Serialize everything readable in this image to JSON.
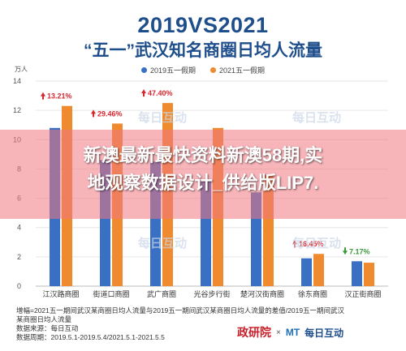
{
  "header": {
    "title": "2019VS2021",
    "subtitle": "“五一”武汉知名商圈日均人流量"
  },
  "legend": [
    {
      "label": "2019五一假期",
      "color": "#3a70c4"
    },
    {
      "label": "2021五一假期",
      "color": "#ef8a2e"
    }
  ],
  "unit_label": "万人",
  "colors": {
    "up": "#d9262e",
    "down": "#3a9a3a",
    "title": "#1f4e8c",
    "grid": "#e6e6e6"
  },
  "chart_data": {
    "type": "bar",
    "categories": [
      "江汉路商圈",
      "街道口商圈",
      "武广商圈",
      "光谷步行街",
      "楚河汉街商圈",
      "徐东商圈",
      "汉正街商圈"
    ],
    "series": [
      {
        "name": "2019五一假期",
        "values": [
          10.8,
          8.6,
          8.5,
          7.2,
          6.4,
          1.9,
          1.7
        ]
      },
      {
        "name": "2021五一假期",
        "values": [
          12.3,
          11.1,
          12.5,
          10.8,
          7.6,
          2.2,
          1.6
        ]
      }
    ],
    "annotations": [
      {
        "category": "江汉路商圈",
        "text": "13.21%",
        "direction": "up"
      },
      {
        "category": "街道口商圈",
        "text": "29.46%",
        "direction": "up"
      },
      {
        "category": "武广商圈",
        "text": "47.40%",
        "direction": "up"
      },
      {
        "category": "徐东商圈",
        "text": "16.45%",
        "direction": "up"
      },
      {
        "category": "汉正街商圈",
        "text": "7.17%",
        "direction": "down"
      }
    ],
    "ylim": [
      0,
      14
    ],
    "yticks": [
      0,
      2,
      4,
      6,
      8,
      10,
      12,
      14
    ],
    "ylabel": "万人",
    "grid": true,
    "legend_position": "top-center"
  },
  "watermarks": [
    "每日互动"
  ],
  "overlay": {
    "line1": "新澳最新最快资料新澳58期,实",
    "line2": "地观察数据设计_供给版LIP7."
  },
  "footnote": {
    "line1": "增幅=2021五一期间武汉某商圈日均人流量与2019五一期间武汉某商圈日均人流量的差值/2019五一期间武汉",
    "line2": "某商圈日均人流量",
    "line3": "数据来源：每日互动",
    "line4": "数据周期：2019.5.1-2019.5.4/2021.5.1-2021.5.5"
  },
  "logos": {
    "left": "政研院",
    "sep": "×",
    "mt": "MT",
    "right": "每日互动"
  }
}
